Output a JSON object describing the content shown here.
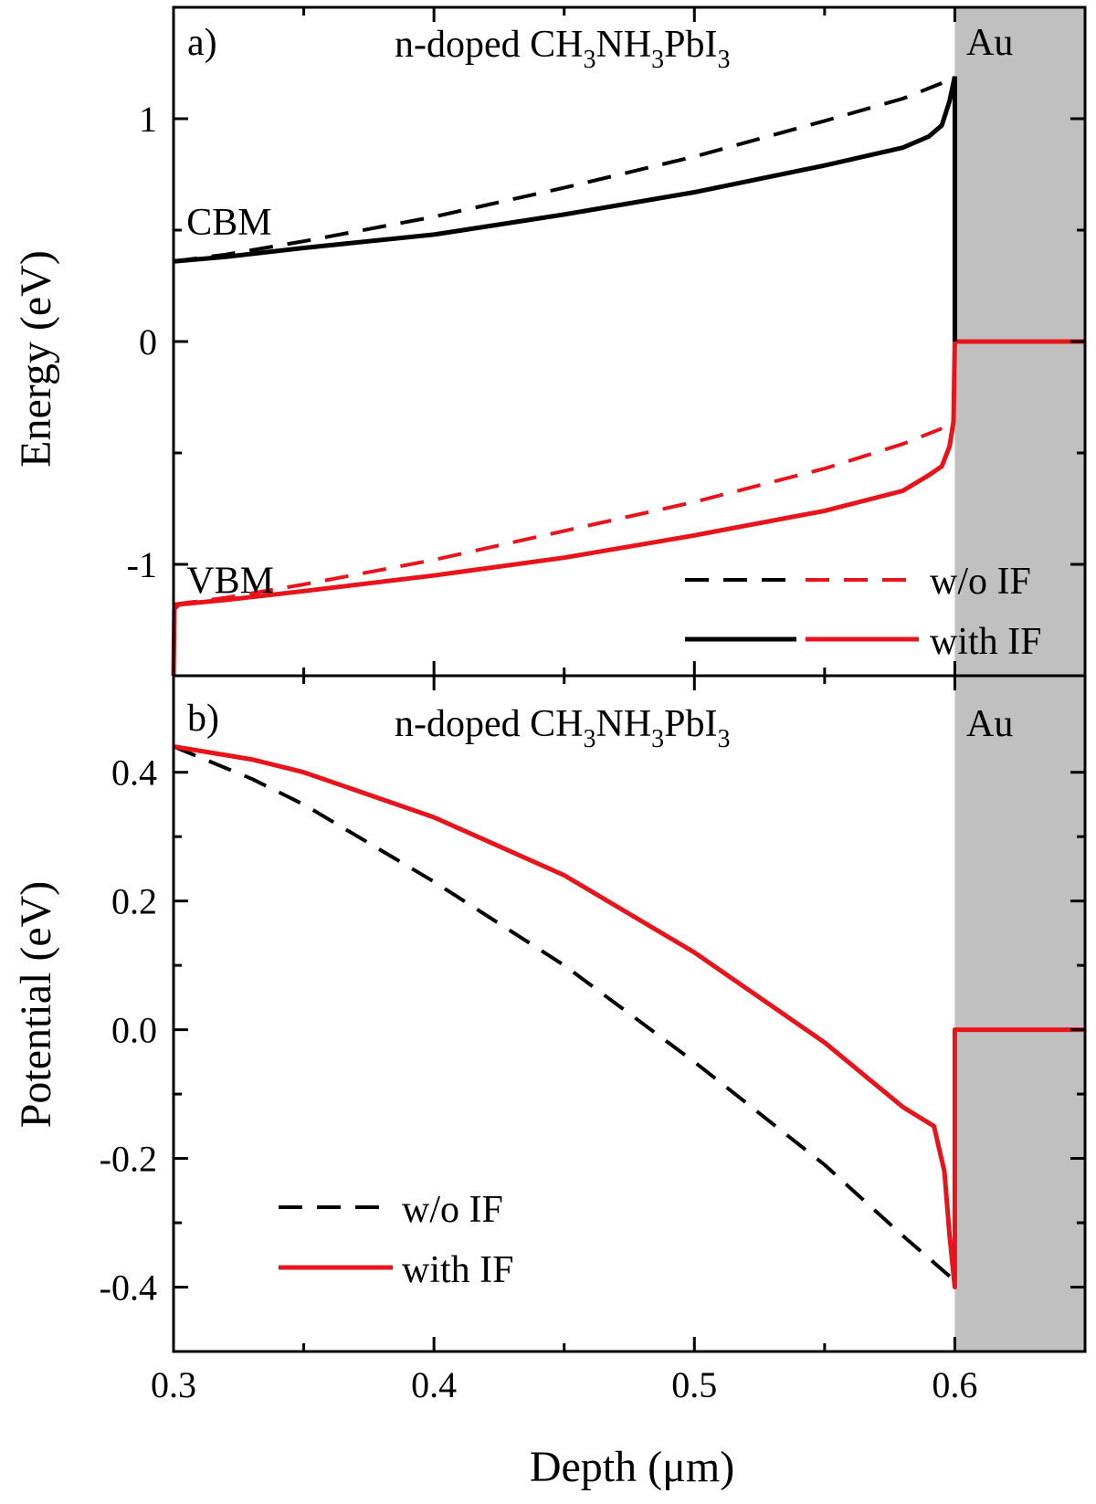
{
  "chart_data": [
    {
      "type": "line",
      "panel_label": "a)",
      "title": "n-doped CH3NH3PbI3",
      "title_parts": {
        "main": "n-doped CH",
        "s1": "3",
        "mid1": "NH",
        "s2": "3",
        "mid2": "PbI",
        "s3": "3"
      },
      "metal_label": "Au",
      "metal_region": [
        0.6,
        0.65
      ],
      "xlabel": "Depth (μm)",
      "ylabel": "Energy (eV)",
      "xlim": [
        0.3,
        0.65
      ],
      "ylim": [
        -1.5,
        1.5
      ],
      "x_ticks": [
        0.3,
        0.4,
        0.5,
        0.6
      ],
      "y_ticks": [
        -1,
        0,
        1
      ],
      "y_tick_labels": [
        "-1",
        "0",
        "1"
      ],
      "annotations": [
        {
          "text": "CBM",
          "x": 0.305,
          "y": 0.48
        },
        {
          "text": "VBM",
          "x": 0.305,
          "y": -1.13
        }
      ],
      "legend_position": "bottom-right",
      "legend": [
        {
          "label": "w/o IF",
          "style": "dashed",
          "colors": [
            "#000000",
            "#e8141b"
          ]
        },
        {
          "label": "with IF",
          "style": "solid",
          "colors": [
            "#000000",
            "#e8141b"
          ]
        }
      ],
      "series": [
        {
          "name": "CBM w/o IF",
          "color": "#000000",
          "style": "dashed",
          "x": [
            0.3,
            0.32,
            0.35,
            0.4,
            0.45,
            0.5,
            0.55,
            0.58,
            0.595
          ],
          "y": [
            0.36,
            0.39,
            0.45,
            0.56,
            0.69,
            0.83,
            0.99,
            1.09,
            1.16
          ]
        },
        {
          "name": "CBM with IF",
          "color": "#000000",
          "style": "solid",
          "x": [
            0.3,
            0.32,
            0.35,
            0.4,
            0.45,
            0.5,
            0.55,
            0.58,
            0.59,
            0.595,
            0.598,
            0.6
          ],
          "y": [
            0.36,
            0.38,
            0.42,
            0.48,
            0.57,
            0.67,
            0.79,
            0.87,
            0.92,
            0.97,
            1.08,
            1.19
          ]
        },
        {
          "name": "VBM w/o IF",
          "color": "#e8141b",
          "style": "dashed",
          "x": [
            0.3,
            0.32,
            0.35,
            0.4,
            0.45,
            0.5,
            0.55,
            0.58,
            0.595
          ],
          "y": [
            -1.18,
            -1.15,
            -1.09,
            -0.98,
            -0.85,
            -0.72,
            -0.57,
            -0.46,
            -0.39
          ]
        },
        {
          "name": "VBM with IF",
          "color": "#e8141b",
          "style": "solid",
          "x": [
            0.3,
            0.3003,
            0.302,
            0.32,
            0.35,
            0.4,
            0.45,
            0.5,
            0.55,
            0.58,
            0.59,
            0.595,
            0.598,
            0.5995,
            0.6,
            0.65
          ],
          "y": [
            -1.5,
            -1.2,
            -1.18,
            -1.16,
            -1.12,
            -1.05,
            -0.97,
            -0.87,
            -0.76,
            -0.67,
            -0.6,
            -0.56,
            -0.47,
            -0.36,
            0.0,
            0.0
          ]
        }
      ]
    },
    {
      "type": "line",
      "panel_label": "b)",
      "title": "n-doped CH3NH3PbI3",
      "title_parts": {
        "main": "n-doped CH",
        "s1": "3",
        "mid1": "NH",
        "s2": "3",
        "mid2": "PbI",
        "s3": "3"
      },
      "metal_label": "Au",
      "metal_region": [
        0.6,
        0.65
      ],
      "xlabel": "Depth (μm)",
      "ylabel": "Potential (eV)",
      "xlim": [
        0.3,
        0.65
      ],
      "ylim": [
        -0.5,
        0.55
      ],
      "x_ticks": [
        0.3,
        0.4,
        0.5,
        0.6
      ],
      "x_tick_labels": [
        "0.3",
        "0.4",
        "0.5",
        "0.6"
      ],
      "y_ticks": [
        -0.4,
        -0.2,
        0.0,
        0.2,
        0.4
      ],
      "y_tick_labels": [
        "-0.4",
        "-0.2",
        "0.0",
        "0.2",
        "0.4"
      ],
      "legend_position": "bottom-left",
      "legend": [
        {
          "label": "w/o IF",
          "style": "dashed",
          "colors": [
            "#000000"
          ]
        },
        {
          "label": "with IF",
          "style": "solid",
          "colors": [
            "#e8141b"
          ]
        }
      ],
      "series": [
        {
          "name": "w/o IF",
          "color": "#000000",
          "style": "dashed",
          "x": [
            0.3,
            0.33,
            0.35,
            0.4,
            0.45,
            0.5,
            0.55,
            0.58,
            0.6
          ],
          "y": [
            0.44,
            0.39,
            0.35,
            0.23,
            0.1,
            -0.05,
            -0.21,
            -0.32,
            -0.39
          ]
        },
        {
          "name": "with IF",
          "color": "#e8141b",
          "style": "solid",
          "x": [
            0.3,
            0.33,
            0.35,
            0.4,
            0.45,
            0.5,
            0.55,
            0.58,
            0.592,
            0.596,
            0.598,
            0.6,
            0.6,
            0.65
          ],
          "y": [
            0.44,
            0.42,
            0.4,
            0.33,
            0.24,
            0.12,
            -0.02,
            -0.12,
            -0.15,
            -0.22,
            -0.32,
            -0.4,
            0.0,
            0.0
          ]
        }
      ]
    }
  ]
}
